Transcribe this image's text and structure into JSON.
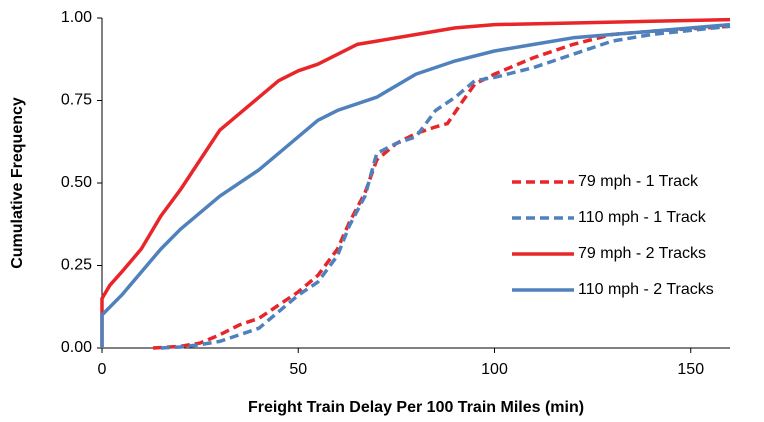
{
  "chart_data": {
    "type": "line",
    "x_label": "Freight Train Delay Per 100 Train Miles (min)",
    "y_label": "Cumulative Frequency",
    "xlim": [
      0,
      160
    ],
    "ylim": [
      0,
      1
    ],
    "xticks": [
      0,
      50,
      100,
      150
    ],
    "yticks": [
      {
        "value": 0,
        "label": "0.00"
      },
      {
        "value": 0.25,
        "label": "0.25"
      },
      {
        "value": 0.5,
        "label": "0.50"
      },
      {
        "value": 0.75,
        "label": "0.75"
      },
      {
        "value": 1,
        "label": "1.00"
      }
    ],
    "grid": false,
    "legend": "right",
    "series": [
      {
        "name": "79 mph - 1 Track",
        "color": "#e8262a",
        "dashed": true,
        "x": [
          13,
          20,
          25,
          30,
          35,
          40,
          45,
          50,
          55,
          60,
          63,
          67,
          70,
          75,
          80,
          85,
          88,
          92,
          95,
          100,
          110,
          120,
          130,
          140,
          160
        ],
        "values": [
          0,
          0.005,
          0.015,
          0.04,
          0.07,
          0.09,
          0.13,
          0.17,
          0.22,
          0.3,
          0.38,
          0.47,
          0.57,
          0.62,
          0.65,
          0.67,
          0.68,
          0.75,
          0.8,
          0.83,
          0.88,
          0.92,
          0.95,
          0.96,
          0.975
        ]
      },
      {
        "name": "110 mph - 1 Track",
        "color": "#4f81bd",
        "dashed": true,
        "x": [
          15,
          20,
          25,
          30,
          35,
          40,
          45,
          50,
          55,
          60,
          63,
          67,
          70,
          75,
          80,
          85,
          90,
          95,
          100,
          110,
          120,
          130,
          140,
          160
        ],
        "values": [
          0,
          0.003,
          0.01,
          0.02,
          0.04,
          0.06,
          0.11,
          0.16,
          0.2,
          0.28,
          0.37,
          0.46,
          0.59,
          0.62,
          0.64,
          0.72,
          0.76,
          0.81,
          0.82,
          0.85,
          0.89,
          0.93,
          0.95,
          0.975
        ]
      },
      {
        "name": "79 mph - 2 Tracks",
        "color": "#e8262a",
        "dashed": false,
        "x": [
          0,
          0,
          2,
          5,
          10,
          15,
          20,
          25,
          30,
          35,
          40,
          45,
          50,
          55,
          60,
          65,
          70,
          80,
          90,
          100,
          120,
          140,
          160
        ],
        "values": [
          0,
          0.15,
          0.19,
          0.23,
          0.3,
          0.4,
          0.48,
          0.57,
          0.66,
          0.71,
          0.76,
          0.81,
          0.84,
          0.86,
          0.89,
          0.92,
          0.93,
          0.95,
          0.97,
          0.98,
          0.985,
          0.99,
          0.995
        ]
      },
      {
        "name": "110 mph - 2 Tracks",
        "color": "#4f81bd",
        "dashed": false,
        "x": [
          0,
          0,
          5,
          10,
          15,
          20,
          25,
          30,
          40,
          50,
          55,
          60,
          70,
          80,
          90,
          100,
          110,
          120,
          140,
          160
        ],
        "values": [
          0,
          0.1,
          0.16,
          0.23,
          0.3,
          0.36,
          0.41,
          0.46,
          0.54,
          0.64,
          0.69,
          0.72,
          0.76,
          0.83,
          0.87,
          0.9,
          0.92,
          0.94,
          0.96,
          0.98
        ]
      }
    ]
  }
}
